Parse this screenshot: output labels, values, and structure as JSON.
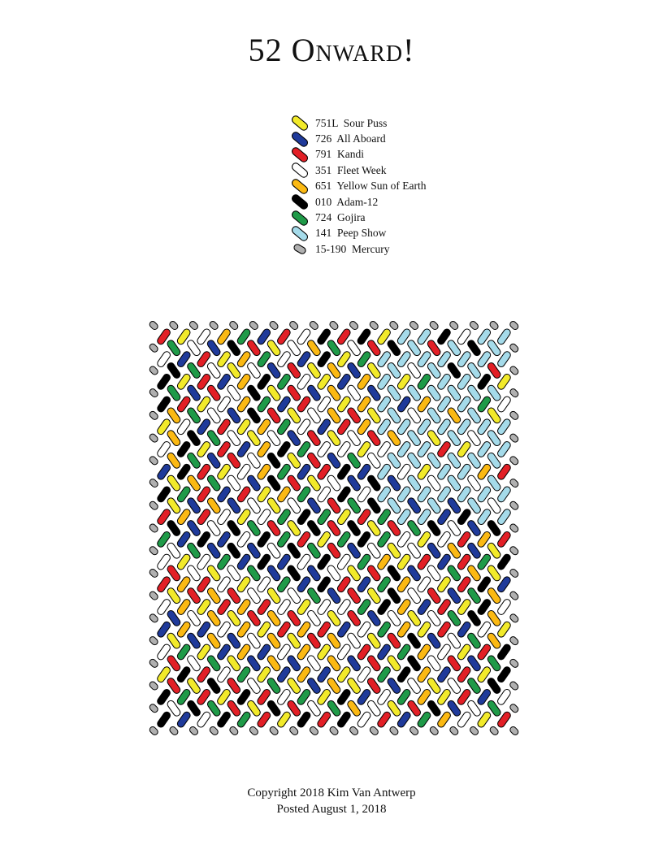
{
  "title": "52  Onward!",
  "legend": [
    {
      "code": "751L",
      "name": "Sour Puss",
      "color": "#f2ea2a"
    },
    {
      "code": "726",
      "name": "All Aboard",
      "color": "#1f3a9a"
    },
    {
      "code": "791",
      "name": "Kandi",
      "color": "#e21f26"
    },
    {
      "code": "351",
      "name": "Fleet Week",
      "color": "#ffffff"
    },
    {
      "code": "651",
      "name": "Yellow Sun of Earth",
      "color": "#fbb913"
    },
    {
      "code": "010",
      "name": "Adam-12",
      "color": "#000000"
    },
    {
      "code": "724",
      "name": "Gojira",
      "color": "#1f9a48"
    },
    {
      "code": "141",
      "name": "Peep Show",
      "color": "#a5dbea"
    },
    {
      "code": "15-190",
      "name": "Mercury",
      "color": "#b0b0b0"
    }
  ],
  "legend_text": [
    "751L  Sour Puss",
    "726  All Aboard",
    "791  Kandi",
    "351  Fleet Week",
    "651  Yellow Sun of Earth",
    "010  Adam-12",
    "724  Gojira",
    "141  Peep Show",
    "15-190  Mercury"
  ],
  "pattern": {
    "palette": {
      "Y": "#f2ea2a",
      "B": "#1f3a9a",
      "R": "#e21f26",
      "W": "#ffffff",
      "O": "#fbb913",
      "K": "#000000",
      "G": "#1f9a48",
      "L": "#a5dbea",
      "M": "#b0b0b0"
    },
    "arm_cycle": [
      "R",
      "B",
      "O",
      "K",
      "G",
      "W",
      "Y",
      "W",
      "B",
      "R",
      "Y",
      "O",
      "G",
      "W",
      "B",
      "K",
      "R",
      "Y",
      "W",
      "O",
      "G",
      "B",
      "R",
      "W",
      "K",
      "Y"
    ],
    "accent_blue_quadrant": "L",
    "border": "M"
  },
  "footer": {
    "copyright": "Copyright 2018 Kim Van Antwerp",
    "posted": "Posted August 1, 2018"
  }
}
